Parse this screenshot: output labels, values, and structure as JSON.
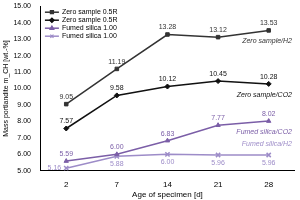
{
  "chart_data": {
    "type": "line",
    "x_label": "Age of specimen [d]",
    "y_label": "Mass portlandite m_CH [wt.-%]",
    "categories": [
      "2",
      "7",
      "14",
      "21",
      "28"
    ],
    "ylim": [
      5,
      15
    ],
    "yticks": [
      {
        "value": 5,
        "label": "5.00"
      },
      {
        "value": 6,
        "label": "6.00"
      },
      {
        "value": 7,
        "label": "7.00"
      },
      {
        "value": 8,
        "label": "8.00"
      },
      {
        "value": 9,
        "label": "9.00"
      },
      {
        "value": 10,
        "label": "10.00"
      },
      {
        "value": 11,
        "label": "11.00"
      },
      {
        "value": 12,
        "label": "12.00"
      },
      {
        "value": 13,
        "label": "13.00"
      },
      {
        "value": 14,
        "label": "14.00"
      },
      {
        "value": 15,
        "label": "15.00"
      }
    ],
    "grid": false,
    "legend": "top-left",
    "data_labels": true,
    "series": [
      {
        "name": "Zero sample 0.5R",
        "annotation": "Zero sample/H2",
        "color": "#333333",
        "marker": "square",
        "line_style": "solid",
        "values": [
          9.05,
          11.19,
          13.28,
          13.12,
          13.53
        ],
        "value_labels": [
          "9.05",
          "11.19",
          "13.28",
          "13.12",
          "13.53"
        ]
      },
      {
        "name": "Zero sample 0.5R",
        "annotation": "Zero sample/CO2",
        "color": "#111111",
        "marker": "diamond",
        "line_style": "solid",
        "values": [
          7.57,
          9.58,
          10.12,
          10.45,
          10.28
        ],
        "value_labels": [
          "7.57",
          "9.58",
          "10.12",
          "10.45",
          "10.28"
        ]
      },
      {
        "name": "Fumed silica 1.00",
        "annotation": "Fumed silica/CO2",
        "color": "#7b5ea7",
        "marker": "triangle",
        "line_style": "solid",
        "values": [
          5.59,
          6.0,
          6.83,
          7.77,
          8.02
        ],
        "value_labels": [
          "5.59",
          "6.00",
          "6.83",
          "7.77",
          "8.02"
        ]
      },
      {
        "name": "Fumed silica 1.00",
        "annotation": "Fumed silica/H2",
        "color": "#9d8cc8",
        "marker": "x",
        "line_style": "solid",
        "values": [
          5.16,
          5.88,
          6.0,
          5.96,
          5.96
        ],
        "value_labels": [
          "5.16",
          "5.88",
          "6.00",
          "5.96",
          "5.96"
        ]
      }
    ]
  }
}
